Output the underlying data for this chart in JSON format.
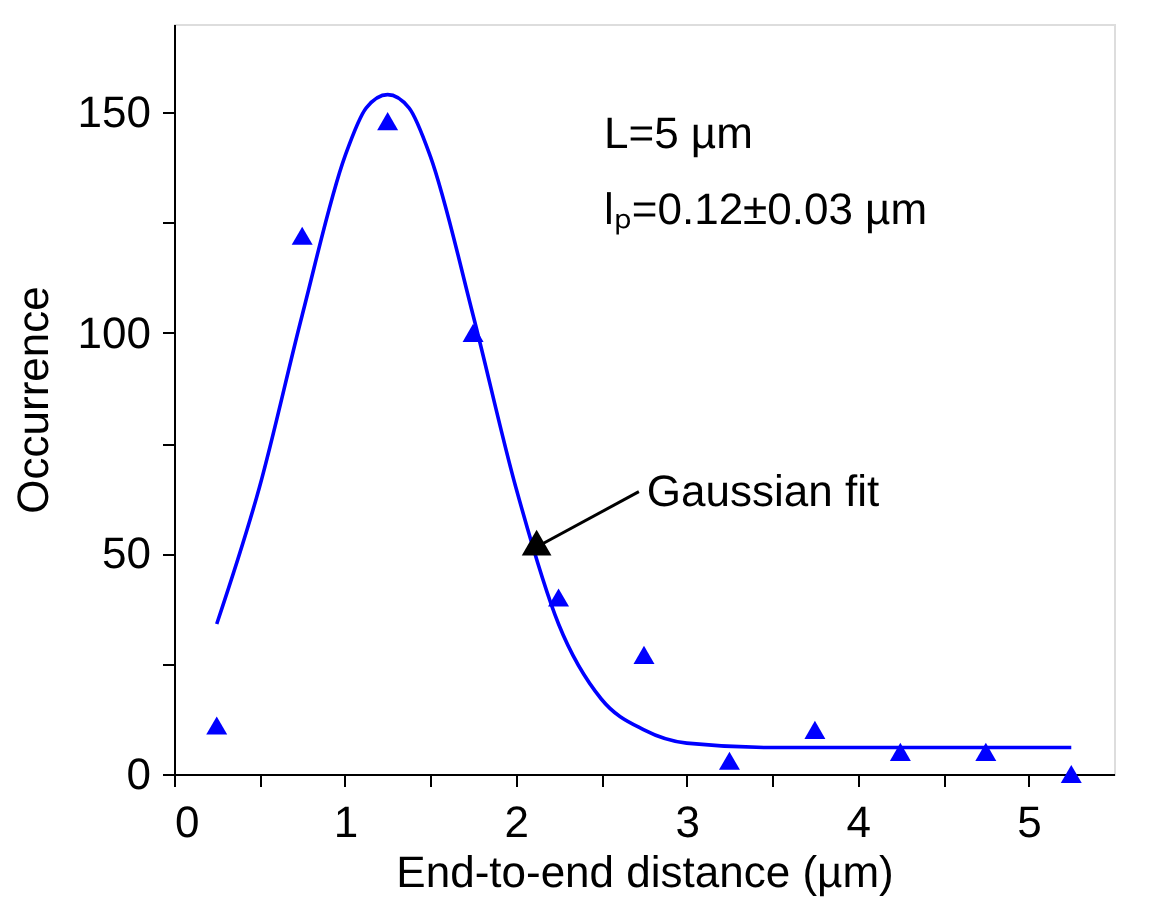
{
  "chart_data": {
    "type": "scatter",
    "xlabel": "End-to-end distance (µm)",
    "ylabel": "Occurrence",
    "xlim": [
      0,
      5.5
    ],
    "ylim": [
      0,
      170
    ],
    "xticks": [
      0,
      {
        "value": 0.5,
        "label": null
      },
      1,
      {
        "value": 1.5,
        "label": null
      },
      2,
      {
        "value": 2.5,
        "label": null
      },
      3,
      {
        "value": 3.5,
        "label": null
      },
      4,
      {
        "value": 4.5,
        "label": null
      },
      5
    ],
    "yticks": [
      0,
      {
        "value": 25,
        "label": null
      },
      50,
      {
        "value": 75,
        "label": null
      },
      100,
      {
        "value": 125,
        "label": null
      },
      150
    ],
    "grid": false,
    "series": [
      {
        "marker": "triangle",
        "color": "#0000ff",
        "x": [
          0.25,
          0.75,
          1.25,
          1.75,
          2.25,
          2.75,
          3.25,
          3.75,
          4.25,
          4.75,
          5.25
        ],
        "values": [
          11,
          122,
          148,
          100,
          40,
          27,
          3,
          10,
          5,
          5,
          0
        ]
      },
      {
        "type": "line",
        "marker": "none",
        "line_style": "solid",
        "color": "#0000ff",
        "x": [
          0.25,
          0.5,
          0.75,
          1.0,
          1.125,
          1.25,
          1.375,
          1.5,
          1.75,
          2.0,
          2.25,
          2.5,
          2.75,
          3.0,
          3.5,
          4.0,
          4.5,
          5.0,
          5.25
        ],
        "values": [
          34,
          65,
          104,
          140,
          151,
          154,
          151,
          140,
          104,
          65,
          34,
          17,
          10,
          7,
          6,
          6,
          6,
          6,
          6
        ]
      }
    ],
    "annotations": [
      "L=5 µm",
      "lₚ=0.12±0.03 µm",
      {
        "text": "Gaussian fit",
        "x": 2.1,
        "y": 51
      }
    ]
  }
}
